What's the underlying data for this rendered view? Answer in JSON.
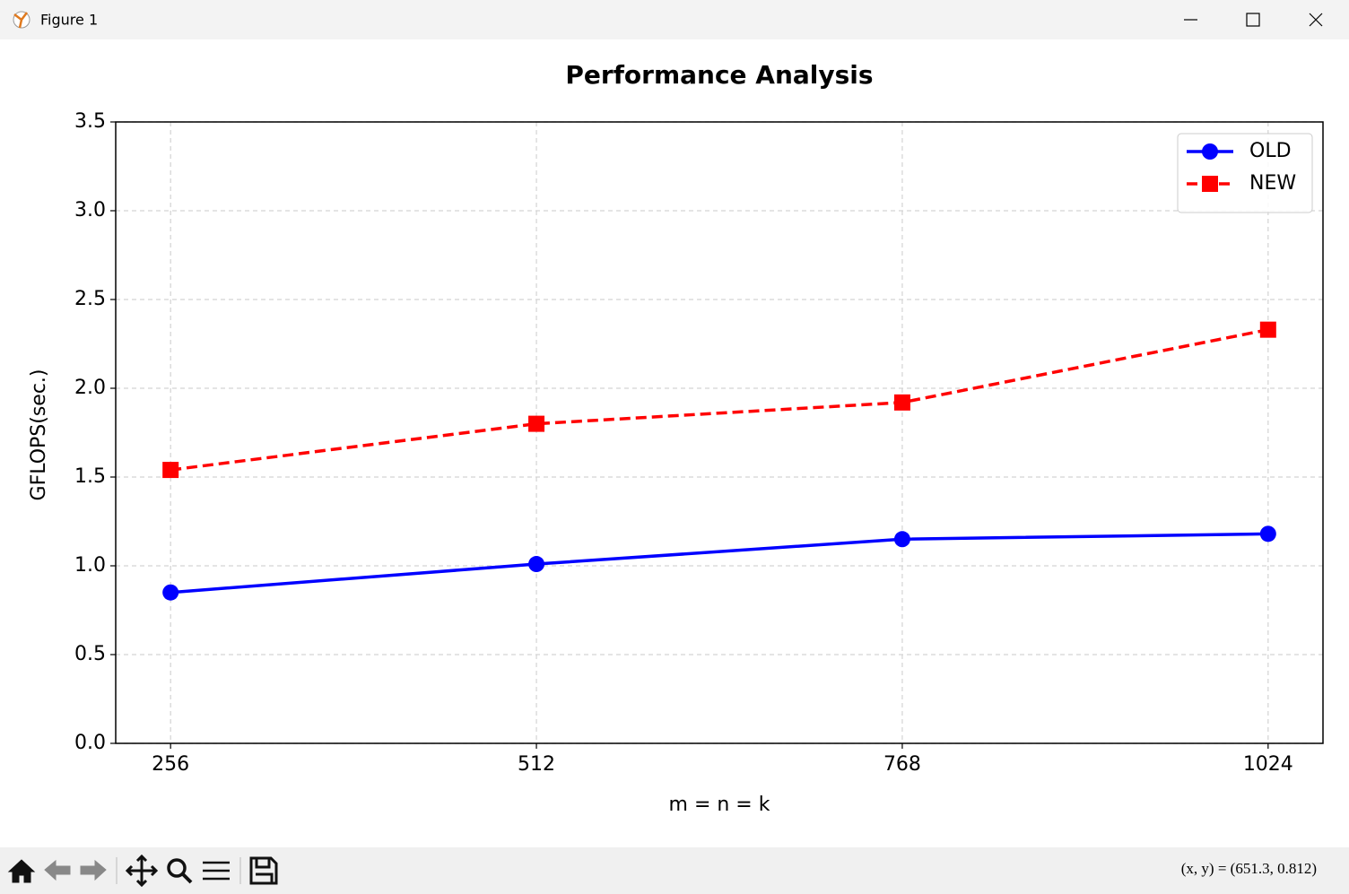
{
  "window": {
    "title": "Figure 1",
    "status": "(x,  y) = (651.3,  0.812)"
  },
  "chart_data": {
    "type": "line",
    "title": "Performance Analysis",
    "xlabel": "m = n = k",
    "ylabel": "GFLOPS(sec.)",
    "x": [
      256,
      512,
      768,
      1024
    ],
    "series": [
      {
        "name": "OLD",
        "color": "#0000ff",
        "marker": "o",
        "linestyle": "solid",
        "values": [
          0.85,
          1.01,
          1.15,
          1.18
        ]
      },
      {
        "name": "NEW",
        "color": "#ff0000",
        "marker": "s",
        "linestyle": "dashed",
        "values": [
          1.54,
          1.8,
          1.92,
          2.33
        ]
      }
    ],
    "xlim": [
      217.6,
      1062.4
    ],
    "xticks": [
      256,
      512,
      768,
      1024
    ],
    "ylim": [
      0,
      3.5
    ],
    "yticks": [
      {
        "value": 0,
        "label": "0.0"
      },
      0.5,
      {
        "value": 1,
        "label": "1.0"
      },
      1.5,
      {
        "value": 2,
        "label": "2.0"
      },
      2.5,
      {
        "value": 3,
        "label": "3.0"
      },
      3.5
    ],
    "grid": true,
    "legend": "upper right"
  }
}
